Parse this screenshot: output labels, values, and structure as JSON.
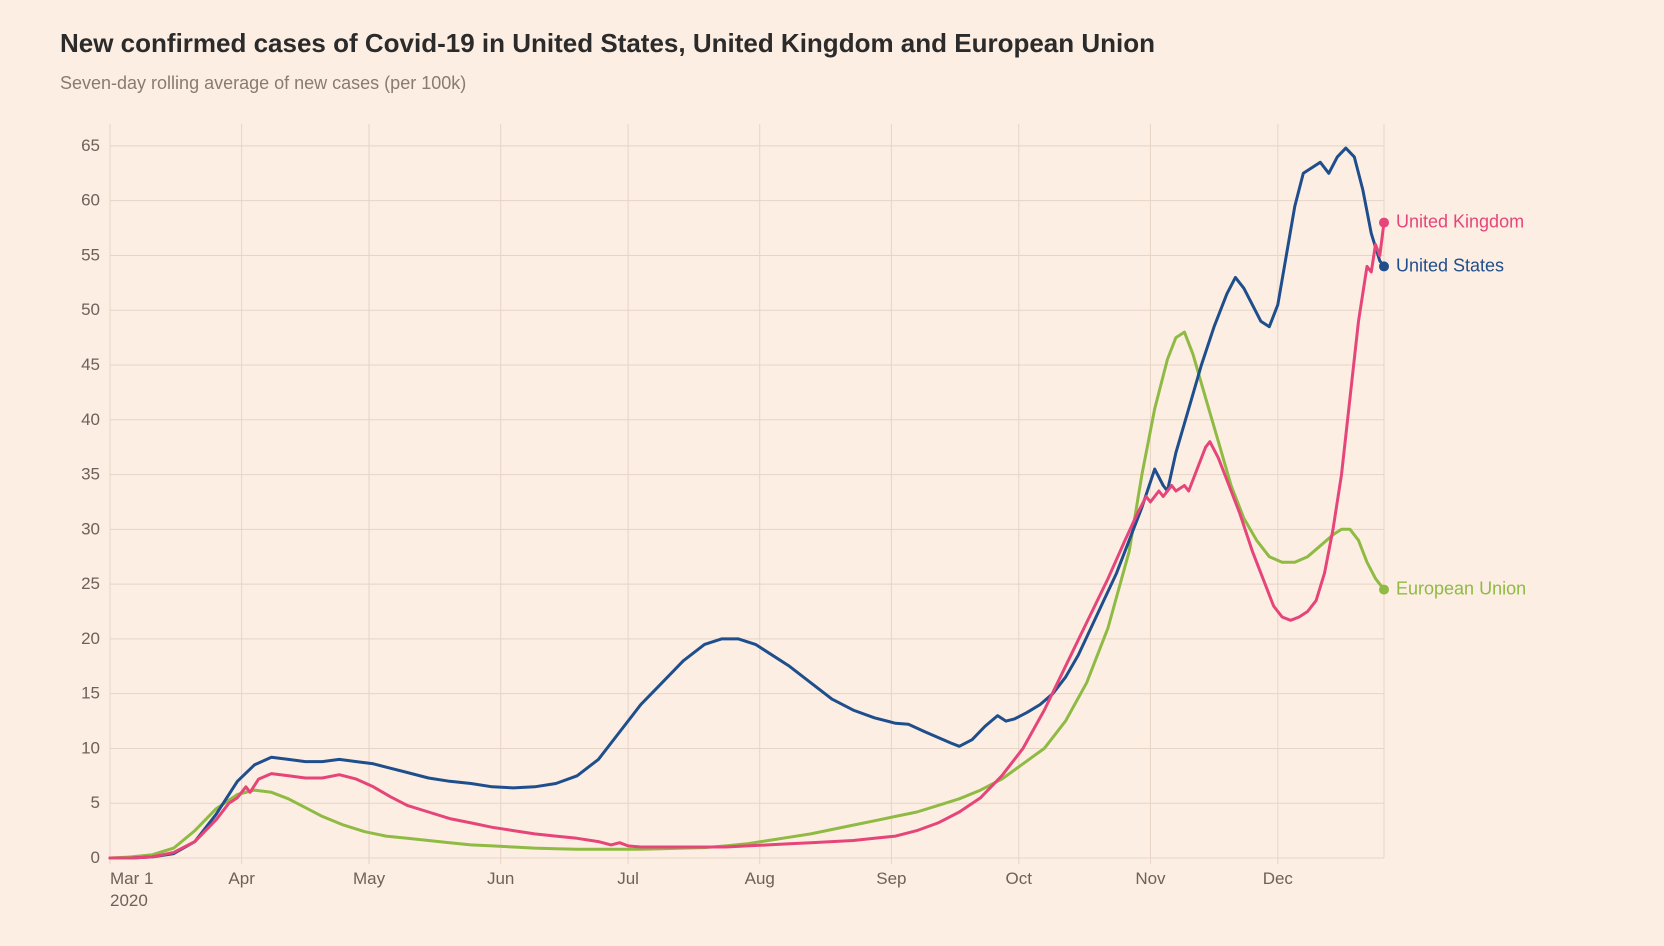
{
  "title": "New confirmed cases of Covid-19 in United States, United Kingdom and European Union",
  "subtitle": "Seven-day rolling average of new cases (per 100k)",
  "chart": {
    "type": "line",
    "background_color": "#fdeee3",
    "grid_color": "#e6d4c7",
    "axis_text_color": "#6f6058",
    "title_color": "#2b2b2b",
    "subtitle_color": "#8a7a70",
    "title_fontsize": 26,
    "subtitle_fontsize": 18,
    "axis_fontsize": 17,
    "label_fontsize": 18,
    "line_width": 3,
    "end_marker_radius": 5,
    "x": {
      "domain_days": [
        0,
        300
      ],
      "ticks": [
        {
          "day": 0,
          "label": "Mar 1",
          "sublabel": "2020"
        },
        {
          "day": 31,
          "label": "Apr"
        },
        {
          "day": 61,
          "label": "May"
        },
        {
          "day": 92,
          "label": "Jun"
        },
        {
          "day": 122,
          "label": "Jul"
        },
        {
          "day": 153,
          "label": "Aug"
        },
        {
          "day": 184,
          "label": "Sep"
        },
        {
          "day": 214,
          "label": "Oct"
        },
        {
          "day": 245,
          "label": "Nov"
        },
        {
          "day": 275,
          "label": "Dec"
        }
      ]
    },
    "y": {
      "lim": [
        0,
        67
      ],
      "ticks": [
        0,
        5,
        10,
        15,
        20,
        25,
        30,
        35,
        40,
        45,
        50,
        55,
        60,
        65
      ]
    },
    "series": [
      {
        "name": "European Union",
        "color": "#8fba43",
        "label": "European Union",
        "data": [
          [
            0,
            0
          ],
          [
            5,
            0.1
          ],
          [
            10,
            0.3
          ],
          [
            15,
            0.9
          ],
          [
            20,
            2.5
          ],
          [
            25,
            4.5
          ],
          [
            30,
            5.8
          ],
          [
            34,
            6.2
          ],
          [
            38,
            6.0
          ],
          [
            42,
            5.4
          ],
          [
            46,
            4.6
          ],
          [
            50,
            3.8
          ],
          [
            55,
            3.0
          ],
          [
            60,
            2.4
          ],
          [
            65,
            2.0
          ],
          [
            70,
            1.8
          ],
          [
            75,
            1.6
          ],
          [
            80,
            1.4
          ],
          [
            85,
            1.2
          ],
          [
            90,
            1.1
          ],
          [
            95,
            1.0
          ],
          [
            100,
            0.9
          ],
          [
            105,
            0.85
          ],
          [
            110,
            0.8
          ],
          [
            115,
            0.8
          ],
          [
            120,
            0.8
          ],
          [
            125,
            0.8
          ],
          [
            130,
            0.85
          ],
          [
            135,
            0.9
          ],
          [
            140,
            0.95
          ],
          [
            145,
            1.1
          ],
          [
            150,
            1.3
          ],
          [
            155,
            1.6
          ],
          [
            160,
            1.9
          ],
          [
            165,
            2.2
          ],
          [
            170,
            2.6
          ],
          [
            175,
            3.0
          ],
          [
            180,
            3.4
          ],
          [
            185,
            3.8
          ],
          [
            190,
            4.2
          ],
          [
            195,
            4.8
          ],
          [
            200,
            5.4
          ],
          [
            205,
            6.2
          ],
          [
            210,
            7.2
          ],
          [
            215,
            8.6
          ],
          [
            220,
            10.0
          ],
          [
            225,
            12.5
          ],
          [
            230,
            16.0
          ],
          [
            235,
            21.0
          ],
          [
            240,
            28.0
          ],
          [
            243,
            35.0
          ],
          [
            246,
            41.0
          ],
          [
            249,
            45.5
          ],
          [
            251,
            47.5
          ],
          [
            253,
            48.0
          ],
          [
            255,
            46.0
          ],
          [
            258,
            42.0
          ],
          [
            261,
            38.0
          ],
          [
            264,
            34.0
          ],
          [
            267,
            31.0
          ],
          [
            270,
            29.0
          ],
          [
            273,
            27.5
          ],
          [
            276,
            27.0
          ],
          [
            279,
            27.0
          ],
          [
            282,
            27.5
          ],
          [
            285,
            28.5
          ],
          [
            288,
            29.5
          ],
          [
            290,
            30.0
          ],
          [
            292,
            30.0
          ],
          [
            294,
            29.0
          ],
          [
            296,
            27.0
          ],
          [
            298,
            25.5
          ],
          [
            300,
            24.5
          ]
        ]
      },
      {
        "name": "United States",
        "color": "#1f4e8c",
        "label": "United States",
        "data": [
          [
            0,
            0
          ],
          [
            5,
            0.0
          ],
          [
            10,
            0.1
          ],
          [
            15,
            0.4
          ],
          [
            20,
            1.5
          ],
          [
            25,
            4.0
          ],
          [
            30,
            7.0
          ],
          [
            34,
            8.5
          ],
          [
            38,
            9.2
          ],
          [
            42,
            9.0
          ],
          [
            46,
            8.8
          ],
          [
            50,
            8.8
          ],
          [
            54,
            9.0
          ],
          [
            58,
            8.8
          ],
          [
            62,
            8.6
          ],
          [
            66,
            8.2
          ],
          [
            70,
            7.8
          ],
          [
            75,
            7.3
          ],
          [
            80,
            7.0
          ],
          [
            85,
            6.8
          ],
          [
            90,
            6.5
          ],
          [
            95,
            6.4
          ],
          [
            100,
            6.5
          ],
          [
            105,
            6.8
          ],
          [
            110,
            7.5
          ],
          [
            115,
            9.0
          ],
          [
            120,
            11.5
          ],
          [
            125,
            14.0
          ],
          [
            130,
            16.0
          ],
          [
            135,
            18.0
          ],
          [
            140,
            19.5
          ],
          [
            144,
            20.0
          ],
          [
            148,
            20.0
          ],
          [
            152,
            19.5
          ],
          [
            156,
            18.5
          ],
          [
            160,
            17.5
          ],
          [
            165,
            16.0
          ],
          [
            170,
            14.5
          ],
          [
            175,
            13.5
          ],
          [
            180,
            12.8
          ],
          [
            185,
            12.3
          ],
          [
            188,
            12.2
          ],
          [
            192,
            11.5
          ],
          [
            195,
            11.0
          ],
          [
            198,
            10.5
          ],
          [
            200,
            10.2
          ],
          [
            203,
            10.8
          ],
          [
            206,
            12.0
          ],
          [
            209,
            13.0
          ],
          [
            211,
            12.5
          ],
          [
            213,
            12.7
          ],
          [
            216,
            13.3
          ],
          [
            219,
            14.0
          ],
          [
            222,
            15.0
          ],
          [
            225,
            16.5
          ],
          [
            228,
            18.5
          ],
          [
            231,
            21.0
          ],
          [
            234,
            23.5
          ],
          [
            237,
            26.0
          ],
          [
            240,
            29.0
          ],
          [
            243,
            32.0
          ],
          [
            246,
            35.5
          ],
          [
            248,
            34.0
          ],
          [
            249,
            33.5
          ],
          [
            251,
            37.0
          ],
          [
            254,
            41.0
          ],
          [
            257,
            45.0
          ],
          [
            260,
            48.5
          ],
          [
            263,
            51.5
          ],
          [
            265,
            53.0
          ],
          [
            267,
            52.0
          ],
          [
            269,
            50.5
          ],
          [
            271,
            49.0
          ],
          [
            273,
            48.5
          ],
          [
            275,
            50.5
          ],
          [
            277,
            55.0
          ],
          [
            279,
            59.5
          ],
          [
            281,
            62.5
          ],
          [
            283,
            63.0
          ],
          [
            285,
            63.5
          ],
          [
            287,
            62.5
          ],
          [
            289,
            64.0
          ],
          [
            291,
            64.8
          ],
          [
            293,
            64.0
          ],
          [
            295,
            61.0
          ],
          [
            297,
            57.0
          ],
          [
            299,
            54.5
          ],
          [
            300,
            54.0
          ]
        ]
      },
      {
        "name": "United Kingdom",
        "color": "#e6457a",
        "label": "United Kingdom",
        "data": [
          [
            0,
            0
          ],
          [
            5,
            0.0
          ],
          [
            10,
            0.1
          ],
          [
            15,
            0.5
          ],
          [
            20,
            1.5
          ],
          [
            25,
            3.5
          ],
          [
            28,
            5.0
          ],
          [
            30,
            5.5
          ],
          [
            32,
            6.5
          ],
          [
            33,
            6.0
          ],
          [
            35,
            7.2
          ],
          [
            38,
            7.7
          ],
          [
            42,
            7.5
          ],
          [
            46,
            7.3
          ],
          [
            50,
            7.3
          ],
          [
            54,
            7.6
          ],
          [
            58,
            7.2
          ],
          [
            62,
            6.5
          ],
          [
            66,
            5.6
          ],
          [
            70,
            4.8
          ],
          [
            75,
            4.2
          ],
          [
            80,
            3.6
          ],
          [
            85,
            3.2
          ],
          [
            90,
            2.8
          ],
          [
            95,
            2.5
          ],
          [
            100,
            2.2
          ],
          [
            105,
            2.0
          ],
          [
            110,
            1.8
          ],
          [
            115,
            1.5
          ],
          [
            118,
            1.2
          ],
          [
            120,
            1.4
          ],
          [
            122,
            1.1
          ],
          [
            125,
            1.0
          ],
          [
            130,
            1.0
          ],
          [
            135,
            1.0
          ],
          [
            140,
            1.0
          ],
          [
            145,
            1.0
          ],
          [
            150,
            1.1
          ],
          [
            155,
            1.2
          ],
          [
            160,
            1.3
          ],
          [
            165,
            1.4
          ],
          [
            170,
            1.5
          ],
          [
            175,
            1.6
          ],
          [
            180,
            1.8
          ],
          [
            185,
            2.0
          ],
          [
            190,
            2.5
          ],
          [
            195,
            3.2
          ],
          [
            200,
            4.2
          ],
          [
            205,
            5.5
          ],
          [
            210,
            7.5
          ],
          [
            215,
            10.0
          ],
          [
            220,
            13.5
          ],
          [
            225,
            17.5
          ],
          [
            230,
            21.5
          ],
          [
            235,
            25.5
          ],
          [
            239,
            29.0
          ],
          [
            242,
            31.5
          ],
          [
            244,
            33.0
          ],
          [
            245,
            32.5
          ],
          [
            247,
            33.5
          ],
          [
            248,
            33.0
          ],
          [
            250,
            34.0
          ],
          [
            251,
            33.5
          ],
          [
            253,
            34.0
          ],
          [
            254,
            33.5
          ],
          [
            256,
            35.5
          ],
          [
            258,
            37.5
          ],
          [
            259,
            38.0
          ],
          [
            261,
            36.5
          ],
          [
            263,
            34.5
          ],
          [
            266,
            31.5
          ],
          [
            269,
            28.0
          ],
          [
            272,
            25.0
          ],
          [
            274,
            23.0
          ],
          [
            276,
            22.0
          ],
          [
            278,
            21.7
          ],
          [
            280,
            22.0
          ],
          [
            282,
            22.5
          ],
          [
            284,
            23.5
          ],
          [
            286,
            26.0
          ],
          [
            288,
            30.0
          ],
          [
            290,
            35.0
          ],
          [
            292,
            42.0
          ],
          [
            294,
            49.0
          ],
          [
            296,
            54.0
          ],
          [
            297,
            53.5
          ],
          [
            298,
            56.0
          ],
          [
            299,
            55.0
          ],
          [
            300,
            58.0
          ]
        ]
      }
    ]
  }
}
